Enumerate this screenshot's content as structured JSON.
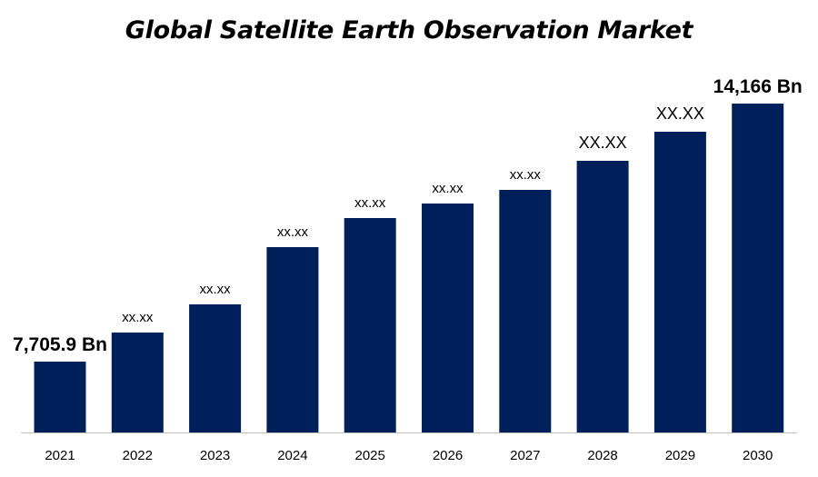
{
  "chart_data": {
    "type": "bar",
    "title": "Global Satellite Earth Observation Market",
    "xlabel": "",
    "ylabel": "",
    "categories": [
      "2021",
      "2022",
      "2023",
      "2024",
      "2025",
      "2026",
      "2027",
      "2028",
      "2029",
      "2030"
    ],
    "values": [
      7705.9,
      null,
      null,
      null,
      null,
      null,
      null,
      null,
      null,
      14166
    ],
    "data_labels": [
      "7,705.9 Bn",
      "xx.xx",
      "xx.xx",
      "xx.xx",
      "xx.xx",
      "xx.xx",
      "xx.xx",
      "XX.XX",
      "XX.XX",
      "14,166 Bn"
    ],
    "bar_color": "#00205b",
    "grid": false,
    "legend": "none"
  }
}
